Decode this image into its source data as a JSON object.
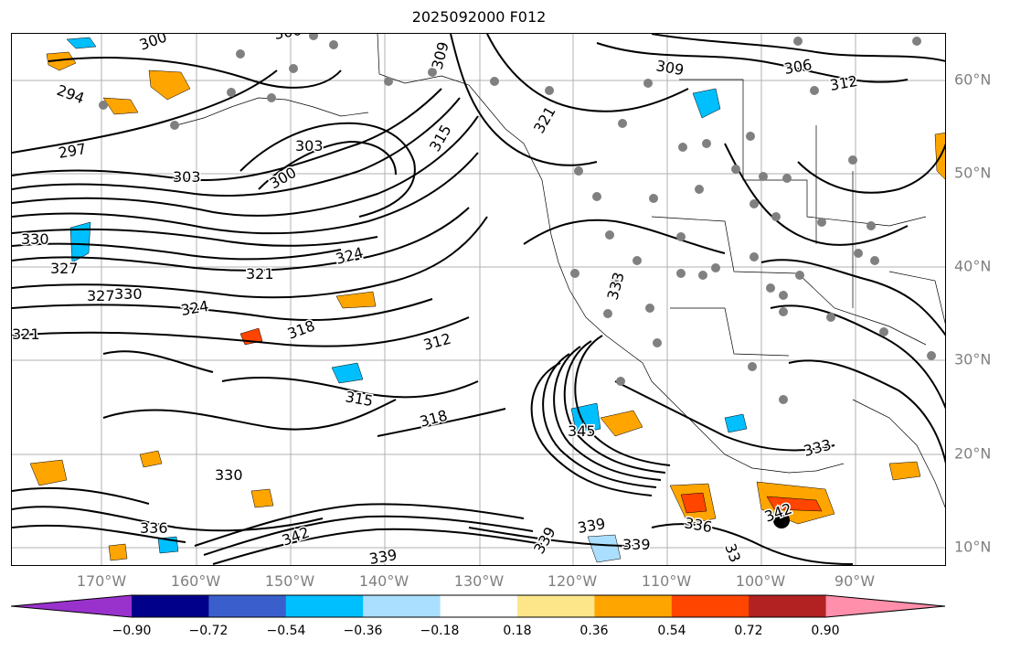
{
  "title": "2025092000 F012",
  "map": {
    "lon_labels": [
      "170°W",
      "160°W",
      "150°W",
      "140°W",
      "130°W",
      "120°W",
      "110°W",
      "100°W",
      "90°W"
    ],
    "lat_labels": [
      "60°N",
      "50°N",
      "40°N",
      "30°N",
      "20°N",
      "10°N"
    ],
    "contour_labels": [
      {
        "text": "300"
      },
      {
        "text": "300"
      },
      {
        "text": "294"
      },
      {
        "text": "297"
      },
      {
        "text": "303"
      },
      {
        "text": "303"
      },
      {
        "text": "300"
      },
      {
        "text": "309"
      },
      {
        "text": "309"
      },
      {
        "text": "306"
      },
      {
        "text": "312"
      },
      {
        "text": "315"
      },
      {
        "text": "321"
      },
      {
        "text": "330"
      },
      {
        "text": "327"
      },
      {
        "text": "321"
      },
      {
        "text": "324"
      },
      {
        "text": "324"
      },
      {
        "text": "318"
      },
      {
        "text": "312"
      },
      {
        "text": "327"
      },
      {
        "text": "330"
      },
      {
        "text": "315"
      },
      {
        "text": "318"
      },
      {
        "text": "345"
      },
      {
        "text": "333"
      },
      {
        "text": "336"
      },
      {
        "text": "342"
      },
      {
        "text": "339"
      },
      {
        "text": "339"
      },
      {
        "text": "336"
      },
      {
        "text": "342"
      },
      {
        "text": "339"
      },
      {
        "text": "339"
      },
      {
        "text": "33"
      },
      {
        "text": "330"
      },
      {
        "text": "333"
      },
      {
        "text": "321"
      }
    ]
  },
  "colorbar": {
    "colors": [
      "#9932cc",
      "#00008b",
      "#3a5fcd",
      "#00bfff",
      "#aadfff",
      "#ffffff",
      "#fde68a",
      "#ffa500",
      "#ff4500",
      "#b22222",
      "#ff8fab"
    ],
    "ticks": [
      "−0.90",
      "−0.72",
      "−0.54",
      "−0.36",
      "−0.18",
      "0.18",
      "0.36",
      "0.54",
      "0.72",
      "0.90"
    ]
  },
  "style": {
    "contour_color": "#000000",
    "grid_color": "#b0b0b0",
    "station_color": "#808080",
    "label_color": "#808080"
  }
}
